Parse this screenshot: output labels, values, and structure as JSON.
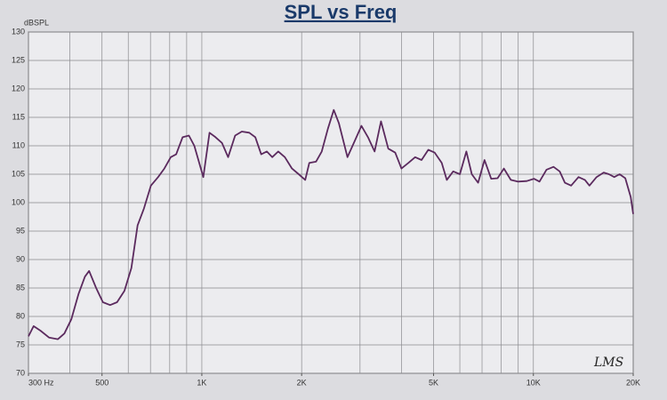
{
  "chart_data": {
    "type": "line",
    "title": "SPL vs Freq",
    "ylabel": "dBSPL",
    "annotation": "LMS",
    "xscale": "log",
    "color": "#5b2a5e",
    "grid": true,
    "xlim": [
      300,
      20000
    ],
    "ylim": [
      70,
      130
    ],
    "yticks": [
      70,
      75,
      80,
      85,
      90,
      95,
      100,
      105,
      110,
      115,
      120,
      125,
      130
    ],
    "xticks": [
      {
        "value": 300,
        "label": "300  Hz"
      },
      {
        "value": 500,
        "label": "500"
      },
      {
        "value": 1000,
        "label": "1K"
      },
      {
        "value": 2000,
        "label": "2K"
      },
      {
        "value": 5000,
        "label": "5K"
      },
      {
        "value": 10000,
        "label": "10K"
      },
      {
        "value": 20000,
        "label": "20K"
      }
    ],
    "xgrid": [
      300,
      400,
      500,
      600,
      700,
      800,
      900,
      1000,
      2000,
      3000,
      4000,
      5000,
      6000,
      7000,
      8000,
      9000,
      10000,
      20000
    ],
    "x": [
      300,
      311,
      326,
      346,
      368,
      385,
      404,
      425,
      444,
      457,
      480,
      503,
      529,
      555,
      584,
      613,
      640,
      669,
      702,
      738,
      771,
      806,
      837,
      875,
      914,
      949,
      1010,
      1055,
      1100,
      1150,
      1200,
      1260,
      1320,
      1390,
      1450,
      1510,
      1570,
      1630,
      1700,
      1780,
      1870,
      1960,
      2050,
      2110,
      2210,
      2300,
      2400,
      2500,
      2590,
      2750,
      2900,
      3030,
      3170,
      3320,
      3470,
      3650,
      3830,
      4000,
      4200,
      4400,
      4600,
      4820,
      5040,
      5290,
      5480,
      5730,
      6000,
      6280,
      6520,
      6810,
      7120,
      7460,
      7800,
      8150,
      8550,
      8970,
      9550,
      10040,
      10430,
      10950,
      11500,
      12000,
      12450,
      13000,
      13680,
      14300,
      14760,
      15510,
      16290,
      16900,
      17540,
      18200,
      18930,
      19660,
      20000
    ],
    "values": [
      76.5,
      78.3,
      77.5,
      76.3,
      76,
      77,
      79.5,
      84,
      87,
      88,
      85,
      82.5,
      82,
      82.5,
      84.5,
      88.5,
      96,
      99,
      103,
      104.5,
      106,
      108,
      108.5,
      111.5,
      111.8,
      110,
      104.5,
      112.3,
      111.5,
      110.5,
      108,
      111.8,
      112.5,
      112.3,
      111.5,
      108.5,
      109,
      108,
      109,
      108,
      106,
      105,
      104,
      107,
      107.2,
      109,
      113,
      116.3,
      114,
      108,
      111,
      113.5,
      111.5,
      109,
      114.3,
      109.5,
      108.8,
      106,
      107,
      108,
      107.5,
      109.3,
      108.8,
      107,
      104,
      105.5,
      105,
      109,
      105,
      103.5,
      107.5,
      104.2,
      104.3,
      106,
      104,
      103.7,
      103.8,
      104.2,
      103.7,
      105.8,
      106.3,
      105.5,
      103.5,
      103,
      104.5,
      104,
      103,
      104.5,
      105.3,
      105,
      104.5,
      105,
      104.3,
      101,
      98
    ]
  }
}
